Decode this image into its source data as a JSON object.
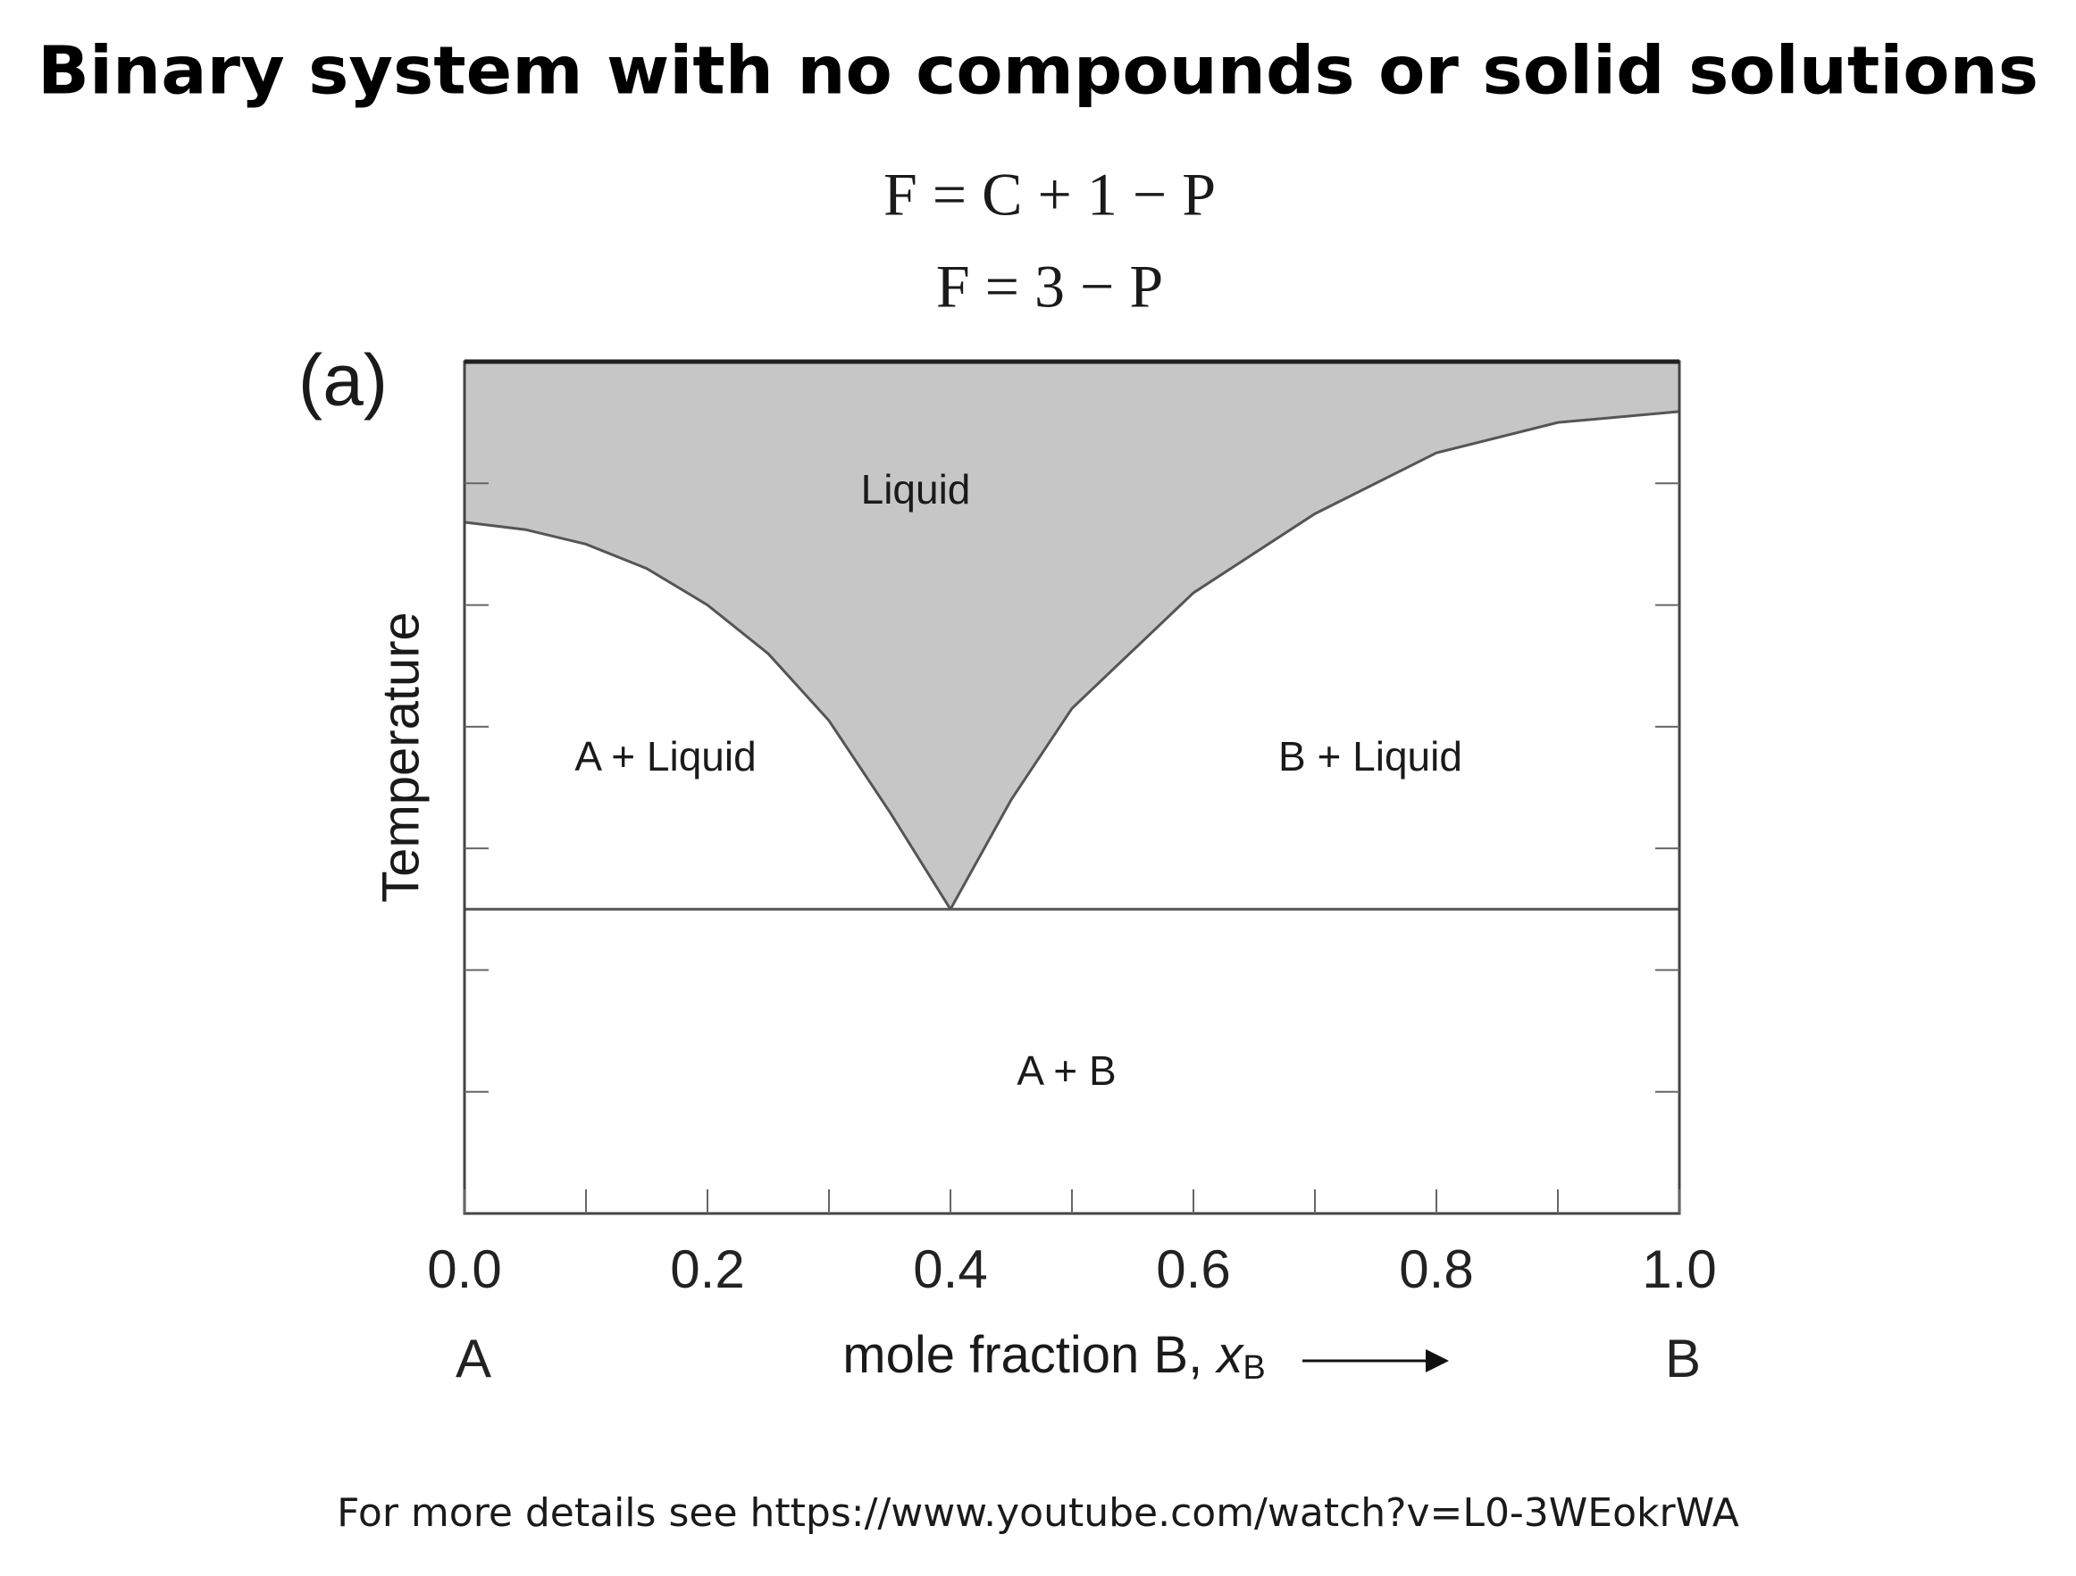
{
  "chart_data": {
    "type": "phase-diagram",
    "title": "Binary system with no compounds or solid solutions",
    "equations": [
      "F = C + 1 − P",
      "F = 3 − P"
    ],
    "panel_label": "(a)",
    "ylabel": "Temperature",
    "xlabel": [
      "mole fraction B, ",
      "x",
      "B"
    ],
    "x_end_labels": [
      "A",
      "B"
    ],
    "xlim": [
      0,
      1
    ],
    "ylim": [
      0,
      7
    ],
    "xticks": [
      {
        "value": 0,
        "label": "0.0"
      },
      {
        "value": 0.2,
        "label": "0.2"
      },
      {
        "value": 0.4,
        "label": "0.4"
      },
      {
        "value": 0.6,
        "label": "0.6"
      },
      {
        "value": 0.8,
        "label": "0.8"
      },
      {
        "value": 1,
        "label": "1.0"
      }
    ],
    "xminor_ticks": [
      0.1,
      0.3,
      0.5,
      0.7,
      0.9
    ],
    "yticks": [
      1,
      2,
      3,
      4,
      5,
      6
    ],
    "region_color": "#c6c6c6",
    "line_color": "#555555",
    "series": [
      {
        "x": [
          0,
          0.05,
          0.1,
          0.15,
          0.2,
          0.25,
          0.3,
          0.35,
          0.4
        ],
        "values": [
          5.68,
          5.62,
          5.5,
          5.3,
          5.0,
          4.6,
          4.05,
          3.3,
          2.5
        ]
      },
      {
        "x": [
          0.4,
          0.45,
          0.5,
          0.6,
          0.7,
          0.8,
          0.9,
          1.0
        ],
        "values": [
          2.5,
          3.4,
          4.15,
          5.1,
          5.75,
          6.25,
          6.5,
          6.59
        ]
      },
      {
        "x": [
          0,
          1
        ],
        "values": [
          2.5,
          2.5
        ]
      }
    ],
    "annotations": [
      "Liquid",
      "A + Liquid",
      "B + Liquid",
      "A + B"
    ],
    "source": "For more details see https://www.youtube.com/watch?v=L0-3WEokrWA"
  }
}
